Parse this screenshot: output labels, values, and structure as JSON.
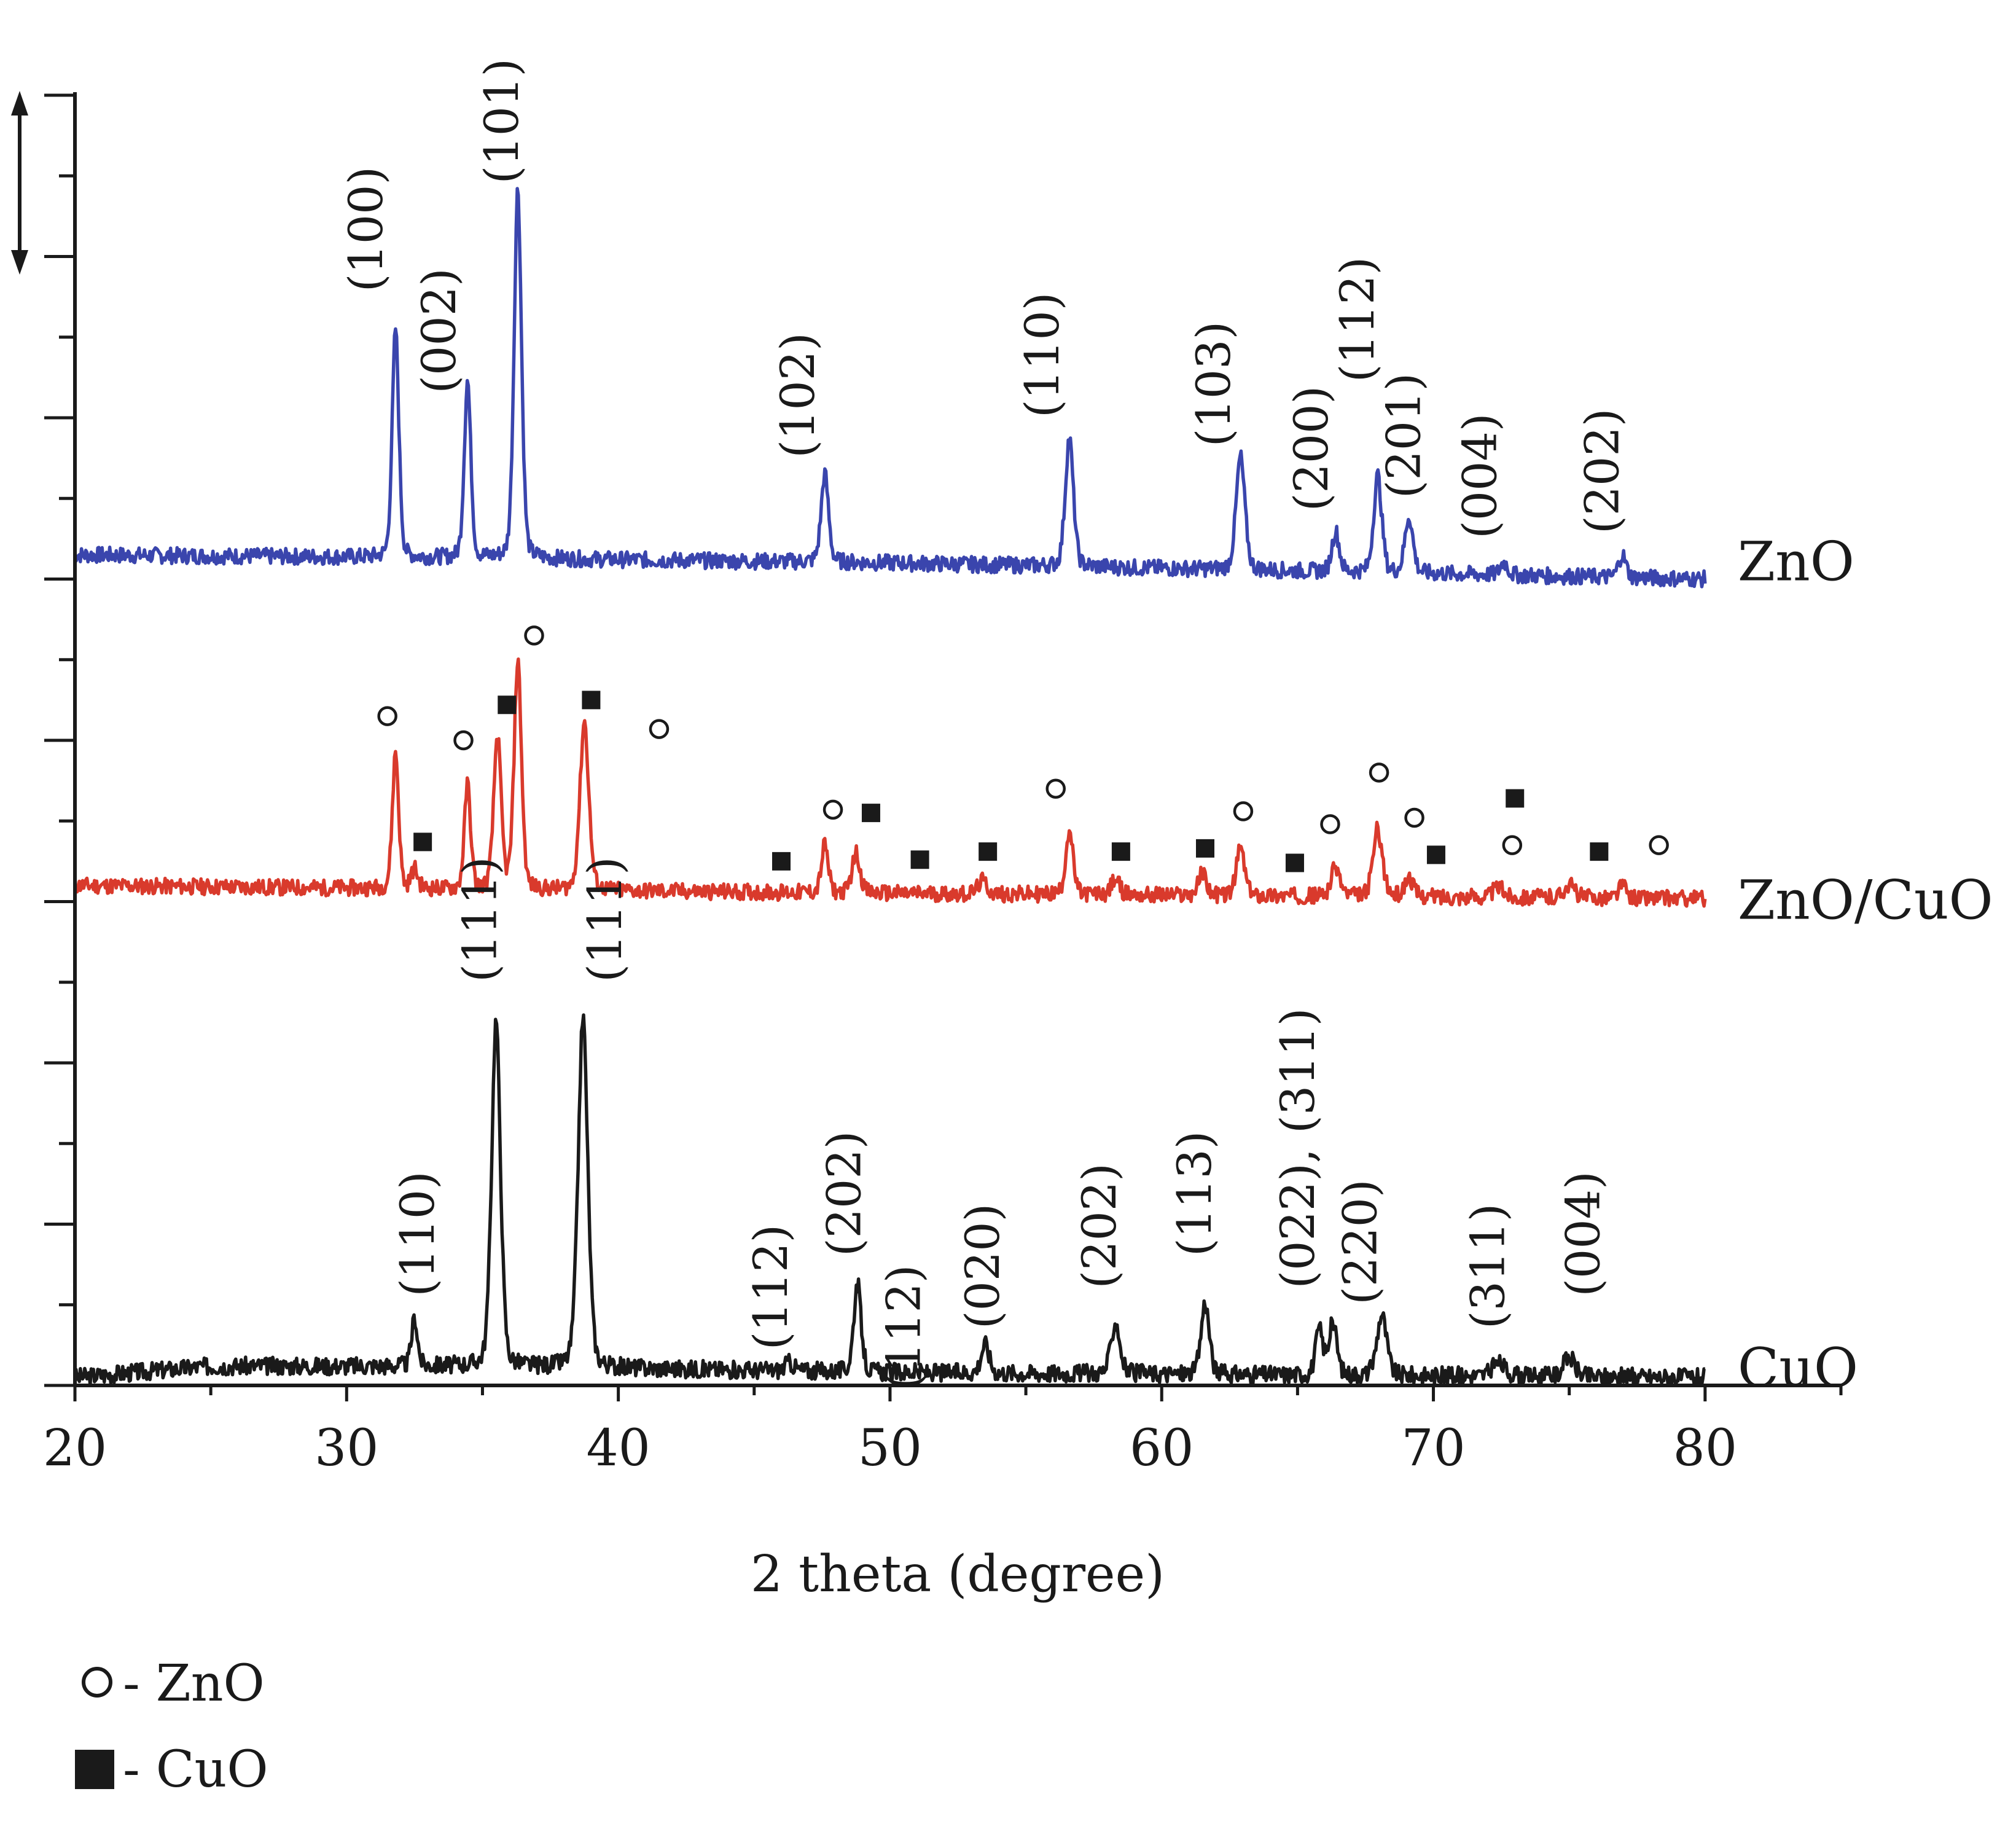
{
  "chart_data": {
    "type": "line",
    "xlabel": "2 theta (degree)",
    "ylabel": "",
    "xlim": [
      20,
      85
    ],
    "ylim": [
      0,
      8
    ],
    "x_ticks": [
      "20",
      "30",
      "40",
      "50",
      "60",
      "70",
      "80"
    ],
    "x_tick_values": [
      20,
      30,
      40,
      50,
      60,
      70,
      80
    ],
    "grid": false,
    "legend_position": "bottom-left",
    "legend": [
      {
        "symbol": "open-circle",
        "label": "- ZnO"
      },
      {
        "symbol": "filled-square",
        "label": "- CuO"
      }
    ],
    "series": [
      {
        "name": "ZnO",
        "color": "#3a45ad",
        "baseline": 5.1,
        "noise": 0.05,
        "seed": 7,
        "x_start": 20,
        "x_end": 80,
        "background": [
          [
            20,
            5.15
          ],
          [
            35,
            5.13
          ],
          [
            50,
            5.1
          ],
          [
            80,
            5.0
          ]
        ],
        "peaks": [
          {
            "x": 31.8,
            "h": 1.42,
            "w": 0.18
          },
          {
            "x": 34.45,
            "h": 1.1,
            "w": 0.18
          },
          {
            "x": 36.3,
            "h": 2.3,
            "w": 0.2
          },
          {
            "x": 47.6,
            "h": 0.55,
            "w": 0.2
          },
          {
            "x": 56.6,
            "h": 0.8,
            "w": 0.22
          },
          {
            "x": 62.9,
            "h": 0.7,
            "w": 0.24
          },
          {
            "x": 66.4,
            "h": 0.25,
            "w": 0.2
          },
          {
            "x": 67.95,
            "h": 0.6,
            "w": 0.22
          },
          {
            "x": 69.1,
            "h": 0.35,
            "w": 0.22
          },
          {
            "x": 72.6,
            "h": 0.08,
            "w": 0.2
          },
          {
            "x": 76.95,
            "h": 0.14,
            "w": 0.2
          }
        ]
      },
      {
        "name": "ZnO/CuO",
        "color": "#d93a2c",
        "baseline": 3.05,
        "noise": 0.05,
        "seed": 11,
        "x_start": 20,
        "x_end": 80,
        "background": [
          [
            20,
            3.1
          ],
          [
            50,
            3.05
          ],
          [
            80,
            3.02
          ]
        ],
        "peaks": [
          {
            "x": 31.8,
            "h": 0.85,
            "w": 0.17
          },
          {
            "x": 32.5,
            "h": 0.12,
            "w": 0.18
          },
          {
            "x": 34.45,
            "h": 0.65,
            "w": 0.17
          },
          {
            "x": 35.55,
            "h": 0.95,
            "w": 0.2
          },
          {
            "x": 36.3,
            "h": 1.42,
            "w": 0.2
          },
          {
            "x": 38.75,
            "h": 1.05,
            "w": 0.24
          },
          {
            "x": 47.6,
            "h": 0.3,
            "w": 0.18
          },
          {
            "x": 48.75,
            "h": 0.25,
            "w": 0.22
          },
          {
            "x": 53.4,
            "h": 0.08,
            "w": 0.25
          },
          {
            "x": 56.6,
            "h": 0.4,
            "w": 0.2
          },
          {
            "x": 58.3,
            "h": 0.1,
            "w": 0.22
          },
          {
            "x": 61.5,
            "h": 0.14,
            "w": 0.22
          },
          {
            "x": 62.9,
            "h": 0.3,
            "w": 0.22
          },
          {
            "x": 66.4,
            "h": 0.18,
            "w": 0.24
          },
          {
            "x": 67.95,
            "h": 0.42,
            "w": 0.25
          },
          {
            "x": 69.1,
            "h": 0.12,
            "w": 0.22
          },
          {
            "x": 72.4,
            "h": 0.06,
            "w": 0.3
          },
          {
            "x": 75.0,
            "h": 0.08,
            "w": 0.3
          },
          {
            "x": 76.95,
            "h": 0.08,
            "w": 0.2
          }
        ]
      },
      {
        "name": "CuO",
        "color": "#1a1a1a",
        "baseline": 0.05,
        "noise": 0.055,
        "seed": 3,
        "x_start": 20,
        "x_end": 80,
        "background": [
          [
            20,
            0.05
          ],
          [
            25,
            0.12
          ],
          [
            35,
            0.12
          ],
          [
            50,
            0.08
          ],
          [
            80,
            0.05
          ]
        ],
        "peaks": [
          {
            "x": 32.5,
            "h": 0.3,
            "w": 0.16
          },
          {
            "x": 35.5,
            "h": 2.15,
            "w": 0.24
          },
          {
            "x": 38.7,
            "h": 2.18,
            "w": 0.26
          },
          {
            "x": 46.3,
            "h": 0.05,
            "w": 0.25
          },
          {
            "x": 48.8,
            "h": 0.55,
            "w": 0.2
          },
          {
            "x": 53.5,
            "h": 0.18,
            "w": 0.22
          },
          {
            "x": 58.3,
            "h": 0.32,
            "w": 0.24
          },
          {
            "x": 61.6,
            "h": 0.45,
            "w": 0.22
          },
          {
            "x": 65.8,
            "h": 0.28,
            "w": 0.2
          },
          {
            "x": 66.3,
            "h": 0.32,
            "w": 0.22
          },
          {
            "x": 68.1,
            "h": 0.38,
            "w": 0.26
          },
          {
            "x": 72.4,
            "h": 0.08,
            "w": 0.35
          },
          {
            "x": 75.0,
            "h": 0.12,
            "w": 0.3
          }
        ]
      }
    ],
    "series_labels": [
      {
        "text": "ZnO",
        "x": 81.2,
        "y": 5.1
      },
      {
        "text": "ZnO/CuO",
        "x": 81.2,
        "y": 3.0
      },
      {
        "text": "CuO",
        "x": 81.2,
        "y": 0.1
      }
    ],
    "peak_labels": [
      {
        "text": "(100)",
        "x": 31.3,
        "y": 6.78
      },
      {
        "text": "(002)",
        "x": 34.0,
        "y": 6.15
      },
      {
        "text": "(101)",
        "x": 36.3,
        "y": 7.45
      },
      {
        "text": "(102)",
        "x": 47.2,
        "y": 5.75
      },
      {
        "text": "(110)",
        "x": 56.2,
        "y": 6.0
      },
      {
        "text": "(103)",
        "x": 62.5,
        "y": 5.82
      },
      {
        "text": "(200)",
        "x": 66.1,
        "y": 5.42
      },
      {
        "text": "(112)",
        "x": 67.8,
        "y": 6.22
      },
      {
        "text": "(201)",
        "x": 69.5,
        "y": 5.5
      },
      {
        "text": "(004)",
        "x": 72.3,
        "y": 5.25
      },
      {
        "text": "(202)",
        "x": 76.8,
        "y": 5.28
      },
      {
        "text": "(110)",
        "x": 33.2,
        "y": 0.55
      },
      {
        "text": "(111)",
        "x": 35.5,
        "y": 2.5
      },
      {
        "text": "(111)",
        "x": 40.1,
        "y": 2.5
      },
      {
        "text": "(112)",
        "x": 46.2,
        "y": 0.22
      },
      {
        "text": "(202)",
        "x": 48.9,
        "y": 0.8
      },
      {
        "text": "(112)",
        "x": 51.1,
        "y": -0.03
      },
      {
        "text": "(020)",
        "x": 54.0,
        "y": 0.35
      },
      {
        "text": "(202)",
        "x": 58.3,
        "y": 0.6
      },
      {
        "text": "(113)",
        "x": 61.8,
        "y": 0.8
      },
      {
        "text": "(022), (311)",
        "x": 65.6,
        "y": 0.6
      },
      {
        "text": "(220)",
        "x": 67.9,
        "y": 0.5
      },
      {
        "text": "(311)",
        "x": 72.6,
        "y": 0.35
      },
      {
        "text": "(004)",
        "x": 76.1,
        "y": 0.55
      }
    ],
    "markers": [
      {
        "symbol": "circle",
        "x": 31.5,
        "y": 4.15
      },
      {
        "symbol": "square",
        "x": 32.8,
        "y": 3.37
      },
      {
        "symbol": "circle",
        "x": 34.3,
        "y": 4.0
      },
      {
        "symbol": "square",
        "x": 35.9,
        "y": 4.22
      },
      {
        "symbol": "circle",
        "x": 36.9,
        "y": 4.65
      },
      {
        "symbol": "square",
        "x": 39.0,
        "y": 4.25
      },
      {
        "symbol": "circle",
        "x": 41.5,
        "y": 4.07
      },
      {
        "symbol": "square",
        "x": 46.0,
        "y": 3.25
      },
      {
        "symbol": "circle",
        "x": 47.9,
        "y": 3.57
      },
      {
        "symbol": "square",
        "x": 49.3,
        "y": 3.55
      },
      {
        "symbol": "square",
        "x": 51.1,
        "y": 3.26
      },
      {
        "symbol": "square",
        "x": 53.6,
        "y": 3.31
      },
      {
        "symbol": "circle",
        "x": 56.1,
        "y": 3.7
      },
      {
        "symbol": "square",
        "x": 58.5,
        "y": 3.31
      },
      {
        "symbol": "square",
        "x": 61.6,
        "y": 3.33
      },
      {
        "symbol": "circle",
        "x": 63.0,
        "y": 3.56
      },
      {
        "symbol": "square",
        "x": 64.9,
        "y": 3.24
      },
      {
        "symbol": "circle",
        "x": 66.2,
        "y": 3.48
      },
      {
        "symbol": "circle",
        "x": 68.0,
        "y": 3.8
      },
      {
        "symbol": "circle",
        "x": 69.3,
        "y": 3.52
      },
      {
        "symbol": "square",
        "x": 70.1,
        "y": 3.29
      },
      {
        "symbol": "circle",
        "x": 72.9,
        "y": 3.35
      },
      {
        "symbol": "square",
        "x": 73.0,
        "y": 3.64
      },
      {
        "symbol": "square",
        "x": 76.1,
        "y": 3.31
      },
      {
        "symbol": "circle",
        "x": 78.3,
        "y": 3.35
      }
    ]
  }
}
